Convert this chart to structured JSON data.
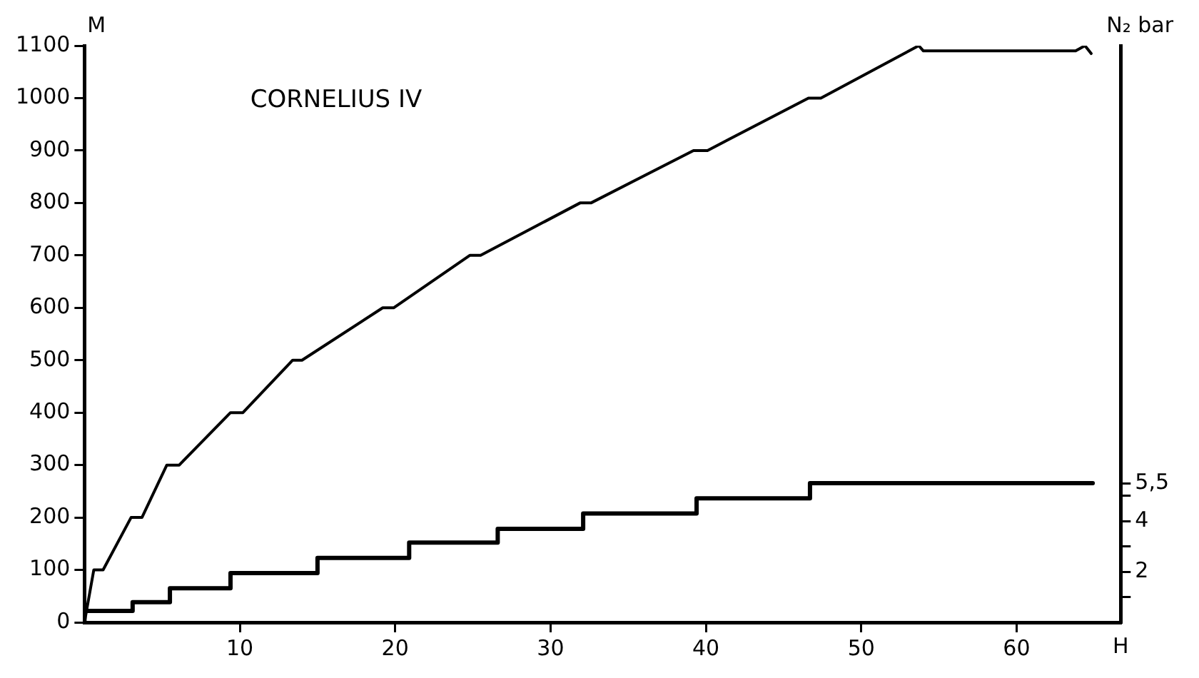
{
  "chart_data": {
    "type": "line",
    "xlabel": "H",
    "ylabel": "M",
    "y2label": "N₂ bar",
    "annotations": [
      "CORNELIUS IV"
    ],
    "marker": "none",
    "grid": false,
    "xlim": [
      0,
      66.7
    ],
    "xticks": [
      10,
      20,
      30,
      40,
      50,
      60
    ],
    "ylim": [
      0,
      1100
    ],
    "yticks": [
      0,
      100,
      200,
      300,
      400,
      500,
      600,
      700,
      800,
      900,
      1000,
      1100
    ],
    "y2lim": [
      0,
      22.8
    ],
    "y2ticks": [
      {
        "value": 1,
        "label": null
      },
      2,
      {
        "value": 3,
        "label": null
      },
      4,
      {
        "value": 5,
        "label": null
      },
      {
        "value": 5.5,
        "label": "5,5"
      }
    ],
    "series": [
      {
        "color": "#000000",
        "x": [
          0,
          0.6,
          1.2,
          3.0,
          3.7,
          5.3,
          6.1,
          9.4,
          10.2,
          13.4,
          14.0,
          19.2,
          19.9,
          24.8,
          25.5,
          31.9,
          32.6,
          39.2,
          40.1,
          46.6,
          47.4,
          53.7,
          54.0,
          63.8,
          64.4,
          64.8
        ],
        "values": [
          0,
          100,
          100,
          200,
          200,
          300,
          300,
          400,
          400,
          500,
          500,
          600,
          600,
          700,
          700,
          800,
          800,
          900,
          900,
          1000,
          1000,
          1100,
          1090,
          1090,
          1100,
          1085
        ]
      },
      {
        "type": "step",
        "axis": "y2",
        "color": "#000000",
        "x": [
          0,
          0,
          3.1,
          5.5,
          9.4,
          15.0,
          20.9,
          26.6,
          32.1,
          39.4,
          46.7,
          64.9
        ],
        "values": [
          0,
          0.45,
          0.8,
          1.35,
          1.95,
          2.55,
          3.15,
          3.7,
          4.3,
          4.9,
          5.5,
          5.5
        ]
      }
    ]
  }
}
